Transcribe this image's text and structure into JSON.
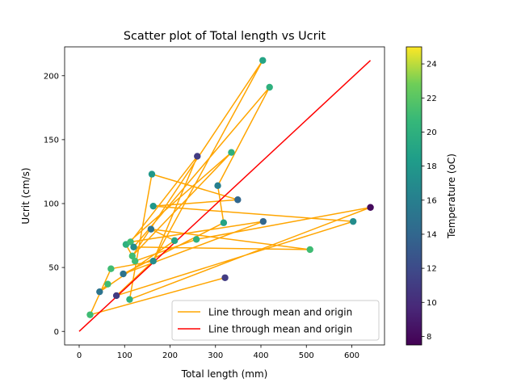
{
  "chart_data": {
    "type": "scatter",
    "title": "Scatter plot of Total length vs Ucrit",
    "xlabel": "Total length (mm)",
    "ylabel": "Ucrit (cm/s)",
    "xlim": [
      -32,
      672
    ],
    "ylim": [
      -10.6,
      222.6
    ],
    "xticks": [
      0,
      100,
      200,
      300,
      400,
      500,
      600
    ],
    "yticks": [
      0,
      50,
      100,
      150,
      200
    ],
    "grid": false,
    "legend_position": "lower right",
    "colorbar": {
      "label": "Temperature (oC)",
      "range": [
        7.5,
        25
      ],
      "ticks": [
        8,
        10,
        12,
        14,
        16,
        18,
        20,
        22,
        24
      ],
      "colormap": "viridis"
    },
    "points": [
      {
        "x": 24,
        "y": 13,
        "t": 21
      },
      {
        "x": 45,
        "y": 31,
        "t": 15
      },
      {
        "x": 63,
        "y": 37,
        "t": 21
      },
      {
        "x": 70,
        "y": 49,
        "t": 21
      },
      {
        "x": 82,
        "y": 28,
        "t": 11
      },
      {
        "x": 97,
        "y": 45,
        "t": 15
      },
      {
        "x": 103,
        "y": 68,
        "t": 20
      },
      {
        "x": 111,
        "y": 25,
        "t": 20
      },
      {
        "x": 113,
        "y": 70,
        "t": 21
      },
      {
        "x": 117,
        "y": 59,
        "t": 21
      },
      {
        "x": 120,
        "y": 66,
        "t": 17
      },
      {
        "x": 123,
        "y": 55,
        "t": 21
      },
      {
        "x": 158,
        "y": 80,
        "t": 15
      },
      {
        "x": 160,
        "y": 123,
        "t": 18
      },
      {
        "x": 163,
        "y": 98,
        "t": 18
      },
      {
        "x": 163,
        "y": 55,
        "t": 17
      },
      {
        "x": 210,
        "y": 71,
        "t": 19
      },
      {
        "x": 258,
        "y": 72,
        "t": 20
      },
      {
        "x": 260,
        "y": 137,
        "t": 11
      },
      {
        "x": 305,
        "y": 114,
        "t": 16
      },
      {
        "x": 318,
        "y": 85,
        "t": 19
      },
      {
        "x": 321,
        "y": 42,
        "t": 11
      },
      {
        "x": 335,
        "y": 140,
        "t": 20
      },
      {
        "x": 349,
        "y": 103,
        "t": 14
      },
      {
        "x": 404,
        "y": 212,
        "t": 19
      },
      {
        "x": 405,
        "y": 86,
        "t": 14
      },
      {
        "x": 419,
        "y": 191,
        "t": 20
      },
      {
        "x": 508,
        "y": 64,
        "t": 21
      },
      {
        "x": 603,
        "y": 86,
        "t": 17
      },
      {
        "x": 641,
        "y": 97,
        "t": 8
      }
    ],
    "orange_line": {
      "label": "Line through mean and origin",
      "color": "#ffa500",
      "x": [
        321,
        24,
        70,
        163,
        404,
        117,
        335,
        103,
        123,
        258,
        641,
        111,
        160,
        349,
        163,
        603,
        82,
        163,
        260,
        113,
        405,
        97,
        318,
        305,
        419,
        120,
        508,
        158,
        210,
        45,
        63
      ],
      "y": [
        42,
        13,
        49,
        55,
        212,
        59,
        140,
        68,
        55,
        72,
        97,
        25,
        123,
        103,
        98,
        86,
        28,
        55,
        137,
        70,
        86,
        45,
        85,
        114,
        191,
        66,
        64,
        80,
        71,
        31,
        37
      ]
    },
    "red_line": {
      "label": "Line through mean and origin",
      "color": "#ff0000",
      "x": [
        0,
        641
      ],
      "y": [
        0,
        212
      ]
    }
  }
}
